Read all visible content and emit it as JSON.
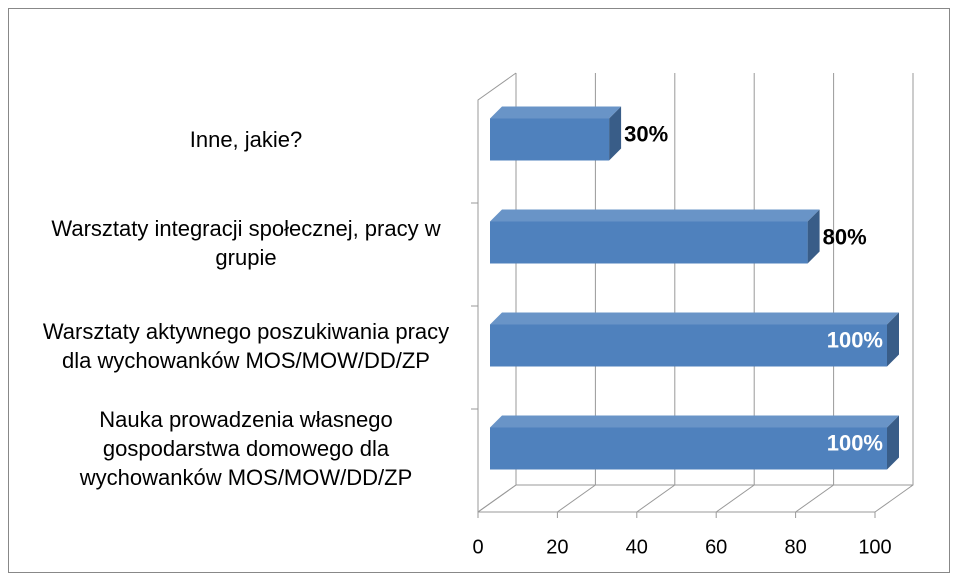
{
  "chart_data": {
    "type": "bar3d_horizontal",
    "categories": [
      "Nauka prowadzenia własnego gospodarstwa domowego dla wychowanków MOS/MOW/DD/ZP",
      "Warsztaty aktywnego poszukiwania pracy dla wychowanków MOS/MOW/DD/ZP",
      "Warsztaty integracji społecznej, pracy w grupie",
      "Inne, jakie?"
    ],
    "values": [
      100,
      100,
      80,
      30
    ],
    "value_labels": [
      "100%",
      "100%",
      "80%",
      "30%"
    ],
    "color": "#4f81bd",
    "xlim": [
      0,
      100
    ],
    "xticks": [
      0,
      20,
      40,
      60,
      80,
      100
    ],
    "grid": true
  }
}
